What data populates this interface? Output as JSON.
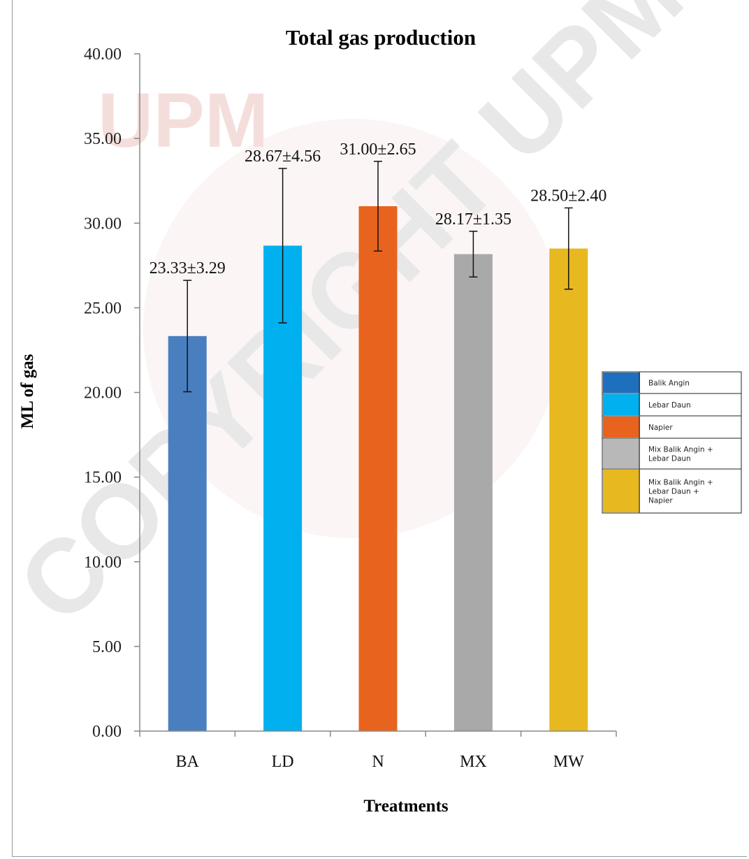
{
  "watermark": {
    "logo_text": "UPM",
    "diagonal_text": "COPYRIGHT UPM"
  },
  "chart_data": {
    "type": "bar",
    "title": "Total gas production",
    "xlabel": "Treatments",
    "ylabel": "ML of gas",
    "categories": [
      "BA",
      "LD",
      "N",
      "MX",
      "MW"
    ],
    "values": [
      23.33,
      28.67,
      31.0,
      28.17,
      28.5
    ],
    "errors": [
      3.29,
      4.56,
      2.65,
      1.35,
      2.4
    ],
    "data_labels": [
      "23.33±3.29",
      "28.67±4.56",
      "31.00±2.65",
      "28.17±1.35",
      "28.50±2.40"
    ],
    "colors": [
      "#4a7fbf",
      "#00b0ef",
      "#e8641e",
      "#a9a9a9",
      "#e8b820"
    ],
    "ylim": [
      0,
      40
    ],
    "yticks": [
      "0.00",
      "5.00",
      "10.00",
      "15.00",
      "20.00",
      "25.00",
      "30.00",
      "35.00",
      "40.00"
    ],
    "grid": false,
    "legend_position": "right",
    "legend": [
      {
        "lines": [
          "Balik Angin"
        ],
        "color": "#1f6fbf"
      },
      {
        "lines": [
          "Lebar Daun"
        ],
        "color": "#00b0ef"
      },
      {
        "lines": [
          "Napier"
        ],
        "color": "#e8641e"
      },
      {
        "lines": [
          "Mix Balik Angin +",
          "Lebar Daun"
        ],
        "color": "#b8b8b8"
      },
      {
        "lines": [
          "Mix Balik Angin +",
          "Lebar Daun +",
          "Napier"
        ],
        "color": "#e8b820"
      }
    ]
  }
}
